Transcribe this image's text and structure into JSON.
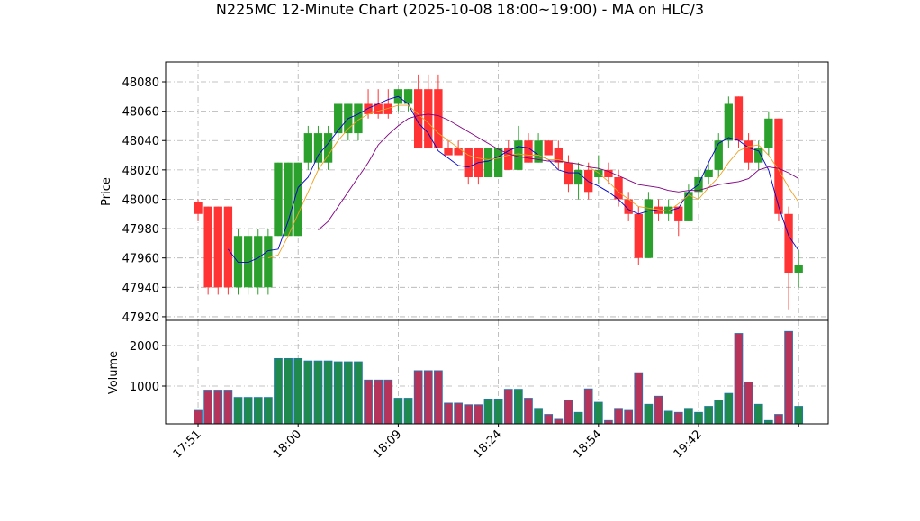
{
  "chart_data": {
    "type": "candlestick",
    "title": "N225MC 12-Minute Chart (2025-10-08 18:00~19:00) - MA on HLC/3",
    "ylabel": "Price",
    "volume_label": "Volume",
    "categories": [
      "17:51",
      null,
      null,
      null,
      null,
      null,
      null,
      null,
      null,
      null,
      "18:00",
      null,
      null,
      null,
      null,
      null,
      null,
      null,
      null,
      null,
      "18:09",
      null,
      null,
      null,
      null,
      null,
      null,
      null,
      null,
      null,
      "18:24",
      null,
      null,
      null,
      null,
      null,
      null,
      null,
      null,
      null,
      "18:54",
      null,
      null,
      null,
      null,
      null,
      null,
      null,
      null,
      null,
      "19:42",
      null,
      null,
      null,
      null,
      null,
      null,
      null,
      null,
      null,
      null
    ],
    "xticks": [
      0,
      10,
      20,
      30,
      40,
      50,
      60
    ],
    "xlim": [
      -3.24,
      62.95
    ],
    "ylim": [
      47917.5,
      48093.5
    ],
    "yticks": [
      47920,
      47940,
      47960,
      47980,
      48000,
      48020,
      48040,
      48060,
      48080
    ],
    "volume_ylim": [
      67,
      2622
    ],
    "volume_yticks": [
      1000,
      2000
    ],
    "grid": true,
    "up_color": "#2ca02c",
    "down_color": "#ff3333",
    "volume_up_color": "#1f8a4c",
    "volume_down_color": "#b8335a",
    "volume_edge_color": "#1f77b4",
    "open": [
      47998,
      47995,
      47995,
      47995,
      47940,
      47940,
      47940,
      47940,
      47975,
      47975,
      47975,
      48025,
      48025,
      48025,
      48045,
      48045,
      48045,
      48065,
      48065,
      48065,
      48065,
      48065,
      48075,
      48075,
      48075,
      48035,
      48035,
      48035,
      48035,
      48015,
      48015,
      48035,
      48020,
      48040,
      48025,
      48040,
      48035,
      48025,
      48010,
      48020,
      48015,
      48020,
      48015,
      48000,
      47990,
      47960,
      47995,
      47990,
      47995,
      47985,
      48005,
      48015,
      48020,
      48040,
      48070,
      48040,
      48025,
      48035,
      48055,
      47990,
      47950
    ],
    "high": [
      48000,
      47995,
      47995,
      47995,
      47980,
      47980,
      47980,
      47980,
      48025,
      48025,
      48025,
      48050,
      48050,
      48050,
      48065,
      48065,
      48065,
      48075,
      48075,
      48075,
      48075,
      48075,
      48085,
      48085,
      48085,
      48040,
      48040,
      48035,
      48035,
      48035,
      48035,
      48040,
      48050,
      48045,
      48045,
      48040,
      48040,
      48030,
      48025,
      48025,
      48030,
      48025,
      48020,
      48005,
      47995,
      48005,
      48000,
      48000,
      47995,
      48010,
      48020,
      48025,
      48045,
      48070,
      48070,
      48045,
      48040,
      48060,
      48055,
      47995,
      47965
    ],
    "low": [
      47985,
      47935,
      47935,
      47935,
      47935,
      47935,
      47935,
      47935,
      47975,
      47975,
      47975,
      48020,
      48020,
      48020,
      48040,
      48040,
      48040,
      48055,
      48055,
      48055,
      48060,
      48060,
      48035,
      48035,
      48035,
      48030,
      48030,
      48010,
      48010,
      48015,
      48015,
      48020,
      48020,
      48025,
      48025,
      48030,
      48020,
      48005,
      48000,
      48000,
      48010,
      48010,
      47995,
      47985,
      47955,
      47960,
      47985,
      47985,
      47975,
      47985,
      48000,
      48010,
      48015,
      48035,
      48035,
      48020,
      48020,
      48030,
      47985,
      47925,
      47940
    ],
    "close": [
      47990,
      47940,
      47940,
      47940,
      47975,
      47975,
      47975,
      47975,
      48025,
      48025,
      48025,
      48045,
      48045,
      48045,
      48065,
      48065,
      48065,
      48058,
      48058,
      48058,
      48075,
      48075,
      48035,
      48035,
      48035,
      48030,
      48030,
      48015,
      48015,
      48035,
      48035,
      48020,
      48040,
      48025,
      48040,
      48030,
      48025,
      48010,
      48020,
      48005,
      48020,
      48015,
      48000,
      47990,
      47960,
      48000,
      47990,
      47995,
      47985,
      48005,
      48015,
      48020,
      48040,
      48065,
      48040,
      48025,
      48035,
      48055,
      47990,
      47950,
      47955
    ],
    "volume": [
      400,
      900,
      900,
      900,
      720,
      720,
      720,
      720,
      1680,
      1680,
      1680,
      1620,
      1620,
      1620,
      1600,
      1600,
      1600,
      1150,
      1150,
      1150,
      700,
      700,
      1380,
      1380,
      1380,
      580,
      580,
      540,
      540,
      680,
      680,
      920,
      920,
      700,
      450,
      300,
      180,
      650,
      350,
      930,
      600,
      150,
      450,
      400,
      1330,
      550,
      750,
      380,
      350,
      450,
      350,
      500,
      650,
      820,
      2300,
      1100,
      550,
      150,
      300,
      2350,
      500
    ],
    "series": [
      {
        "color": "#0000cc",
        "values": [
          null,
          null,
          null,
          47966,
          47957,
          47957,
          47960,
          47965,
          47966,
          47985,
          48008,
          48015,
          48030,
          48038,
          48047,
          48055,
          48058,
          48062,
          48065,
          48068,
          48070,
          48065,
          48052,
          48045,
          48033,
          48028,
          48023,
          48022,
          48025,
          48026,
          48029,
          48033,
          48036,
          48035,
          48030,
          48027,
          48020,
          48018,
          48018,
          48012,
          48009,
          48005,
          48000,
          47993,
          47990,
          47992,
          47993,
          47992,
          47994,
          48005,
          48010,
          48025,
          48038,
          48042,
          48040,
          48035,
          48033,
          48020,
          47995,
          47975,
          47965
        ]
      },
      {
        "color": "#f0a020",
        "values": [
          null,
          null,
          null,
          null,
          null,
          null,
          null,
          47960,
          47962,
          47975,
          47990,
          48005,
          48020,
          48030,
          48040,
          48048,
          48054,
          48058,
          48060,
          48062,
          48064,
          48064,
          48058,
          48052,
          48045,
          48040,
          48035,
          48030,
          48028,
          48027,
          48028,
          48030,
          48031,
          48030,
          48030,
          48027,
          48027,
          48025,
          48024,
          48022,
          48018,
          48012,
          48005,
          48000,
          47995,
          47994,
          47993,
          47992,
          47997,
          48003,
          48000,
          48008,
          48015,
          48025,
          48033,
          48036,
          48037,
          48030,
          48020,
          48008,
          47998
        ]
      },
      {
        "color": "#800080",
        "values": [
          null,
          null,
          null,
          null,
          null,
          null,
          null,
          null,
          null,
          null,
          null,
          null,
          47979,
          47985,
          47995,
          48005,
          48015,
          48025,
          48037,
          48044,
          48050,
          48055,
          48057,
          48058,
          48057,
          48054,
          48050,
          48046,
          48042,
          48038,
          48034,
          48031,
          48029,
          48028,
          48027,
          48026,
          48026,
          48025,
          48024,
          48022,
          48021,
          48019,
          48016,
          48013,
          48010,
          48009,
          48008,
          48006,
          48005,
          48006,
          48006,
          48008,
          48010,
          48011,
          48012,
          48014,
          48020,
          48022,
          48021,
          48018,
          48014
        ]
      }
    ]
  }
}
